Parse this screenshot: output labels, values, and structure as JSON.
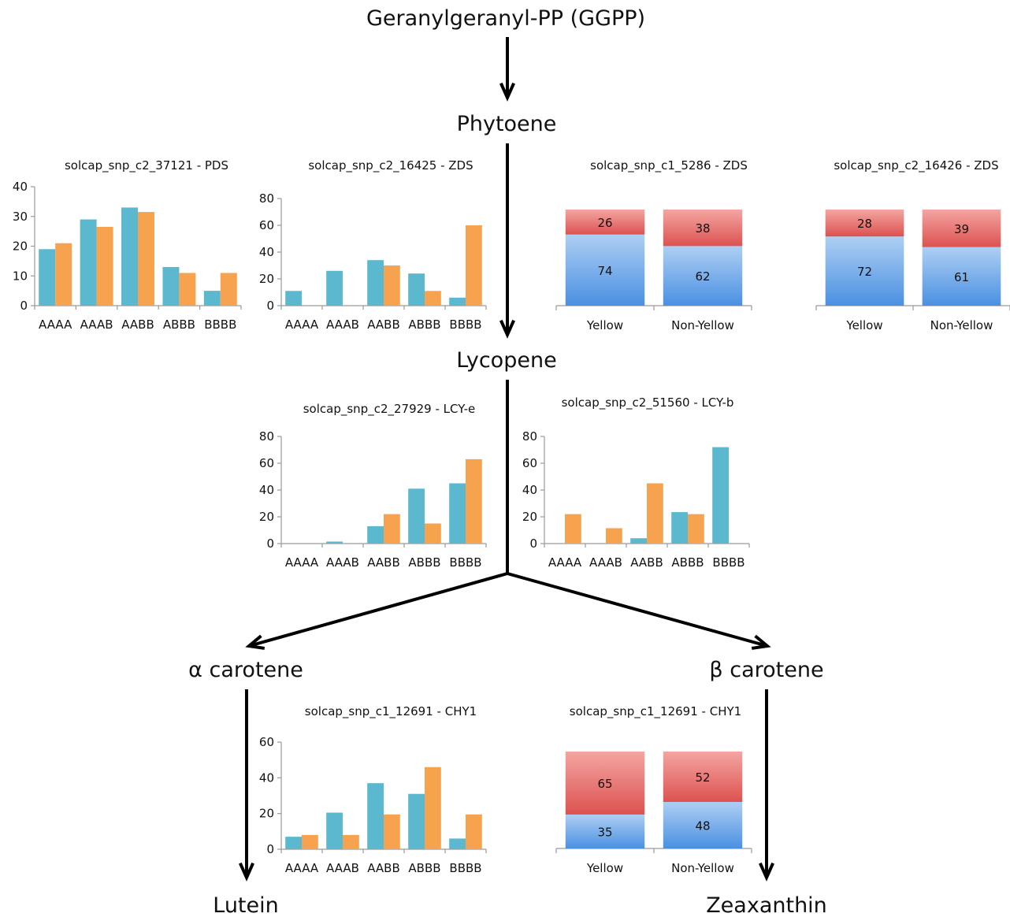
{
  "colors": {
    "series_a": "#5BB8CE",
    "series_b": "#F7A24F",
    "stack_lower": "#4A90E2",
    "stack_upper": "#E05A5A",
    "axis": "#9a9a9a",
    "arrow": "#000000"
  },
  "pathway": {
    "ggpp": "Geranylgeranyl-PP (GGPP)",
    "phytoene": "Phytoene",
    "lycopene": "Lycopene",
    "alpha": "α carotene",
    "beta": "β carotene",
    "lutein": "Lutein",
    "zeaxanthin": "Zeaxanthin"
  },
  "chart_data": [
    {
      "id": "pds",
      "type": "bar",
      "title": "solcap_snp_c2_37121 - PDS",
      "categories": [
        "AAAA",
        "AAAB",
        "AABB",
        "ABBB",
        "BBBB"
      ],
      "series": [
        {
          "values": [
            19,
            29,
            33,
            13,
            5
          ]
        },
        {
          "values": [
            21,
            26.5,
            31.5,
            11,
            11
          ]
        }
      ],
      "ylim": [
        0,
        40
      ],
      "yticks": [
        0,
        10,
        20,
        30,
        40
      ]
    },
    {
      "id": "zds1",
      "type": "bar",
      "title": "solcap_snp_c2_16425 - ZDS",
      "categories": [
        "AAAA",
        "AAAB",
        "AABB",
        "ABBB",
        "BBBB"
      ],
      "series": [
        {
          "values": [
            11,
            26,
            34,
            24,
            6
          ]
        },
        {
          "values": [
            0,
            0,
            30,
            11,
            60
          ]
        }
      ],
      "ylim": [
        0,
        80
      ],
      "yticks": [
        0,
        20,
        40,
        60,
        80
      ]
    },
    {
      "id": "zds2",
      "type": "bar",
      "stacked": true,
      "title": "solcap_snp_c1_5286 - ZDS",
      "categories": [
        "Yellow",
        "Non-Yellow"
      ],
      "series": [
        {
          "values": [
            74,
            62
          ]
        },
        {
          "values": [
            26,
            38
          ]
        }
      ],
      "ylim": [
        0,
        100
      ]
    },
    {
      "id": "zds3",
      "type": "bar",
      "stacked": true,
      "title": "solcap_snp_c2_16426 - ZDS",
      "categories": [
        "Yellow",
        "Non-Yellow"
      ],
      "series": [
        {
          "values": [
            72,
            61
          ]
        },
        {
          "values": [
            28,
            39
          ]
        }
      ],
      "ylim": [
        0,
        100
      ]
    },
    {
      "id": "lcye",
      "type": "bar",
      "title": "solcap_snp_c2_27929 - LCY-e",
      "categories": [
        "AAAA",
        "AAAB",
        "AABB",
        "ABBB",
        "BBBB"
      ],
      "series": [
        {
          "values": [
            0,
            1.5,
            13,
            41,
            45
          ]
        },
        {
          "values": [
            0,
            0,
            22,
            15,
            63
          ]
        }
      ],
      "ylim": [
        0,
        80
      ],
      "yticks": [
        0,
        20,
        40,
        60,
        80
      ]
    },
    {
      "id": "lcyb",
      "type": "bar",
      "title": "solcap_snp_c2_51560 - LCY-b",
      "categories": [
        "AAAA",
        "AAAB",
        "AABB",
        "ABBB",
        "BBBB"
      ],
      "series": [
        {
          "values": [
            0,
            0,
            4,
            23.5,
            72
          ]
        },
        {
          "values": [
            22,
            11.5,
            45,
            22,
            0
          ]
        }
      ],
      "ylim": [
        0,
        80
      ],
      "yticks": [
        0,
        20,
        40,
        60,
        80
      ]
    },
    {
      "id": "chy1a",
      "type": "bar",
      "title": "solcap_snp_c1_12691 - CHY1",
      "categories": [
        "AAAA",
        "AAAB",
        "AABB",
        "ABBB",
        "BBBB"
      ],
      "series": [
        {
          "values": [
            7,
            20.5,
            37,
            31,
            6
          ]
        },
        {
          "values": [
            8,
            8,
            19.5,
            46,
            19.5
          ]
        }
      ],
      "ylim": [
        0,
        60
      ],
      "yticks": [
        0,
        20,
        40,
        60
      ]
    },
    {
      "id": "chy1b",
      "type": "bar",
      "stacked": true,
      "title": "solcap_snp_c1_12691 - CHY1",
      "categories": [
        "Yellow",
        "Non-Yellow"
      ],
      "series": [
        {
          "values": [
            35,
            48
          ]
        },
        {
          "values": [
            65,
            52
          ]
        }
      ],
      "ylim": [
        0,
        100
      ]
    }
  ]
}
